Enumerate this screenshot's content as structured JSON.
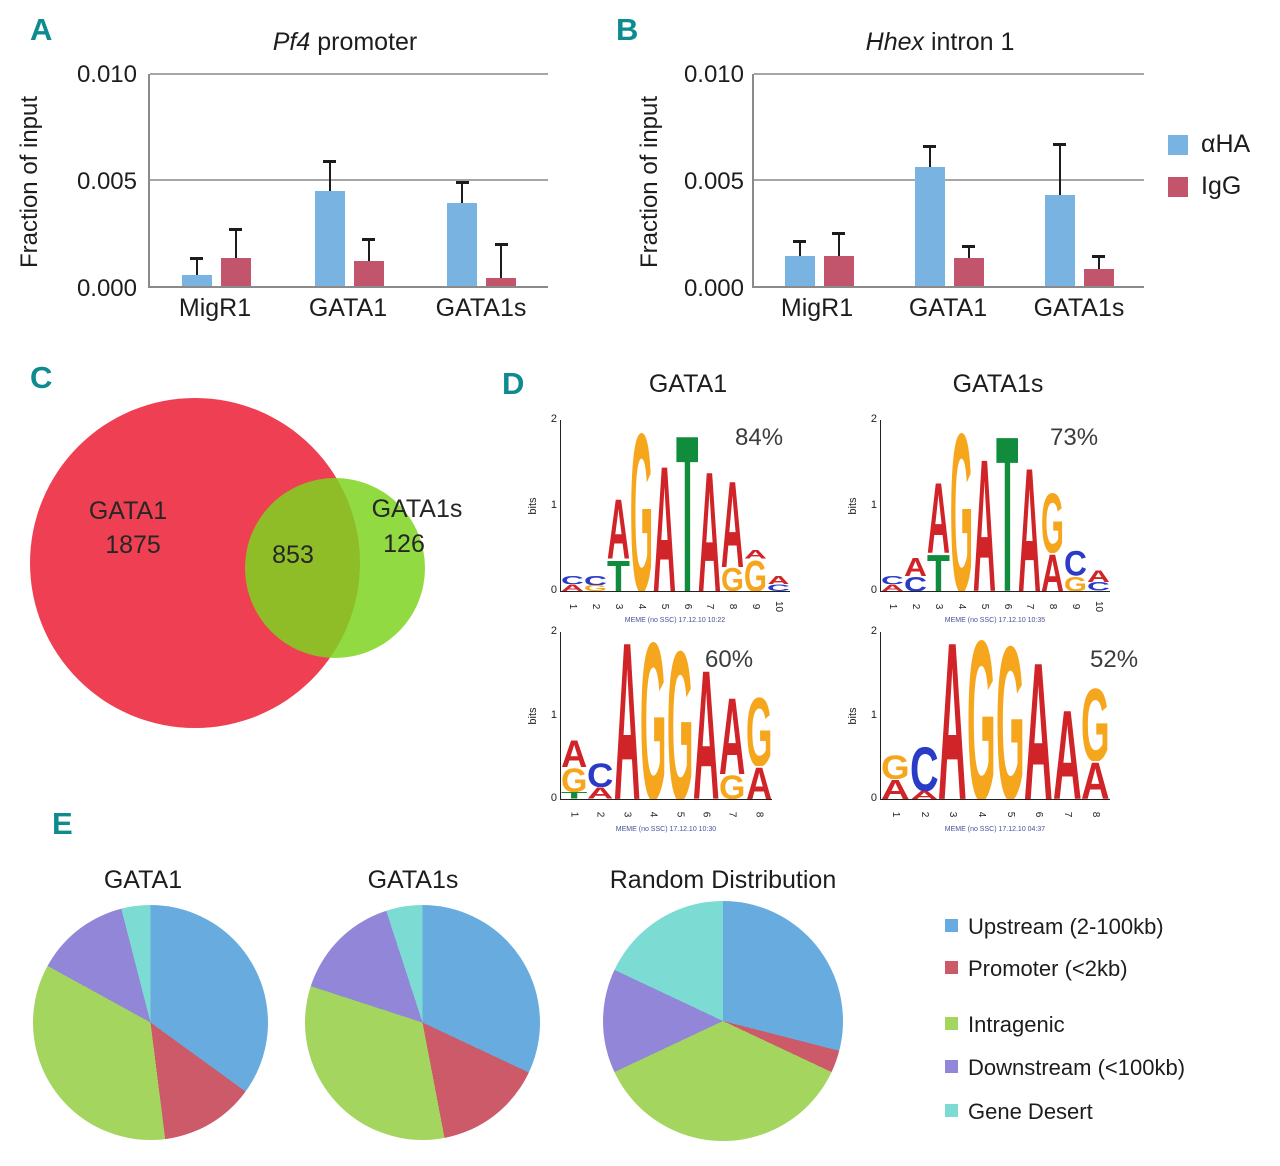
{
  "colors": {
    "panel_letter": "#0d8b90",
    "logo_A": "#d02428",
    "logo_C": "#2a3bc8",
    "logo_G": "#f5a61d",
    "logo_T": "#108c3c"
  },
  "chart_data": [
    {
      "type": "bar",
      "panel": "A",
      "title": "Pf4 promoter",
      "title_italic": "Pf4",
      "title_plain": " promoter",
      "ylabel": "Fraction of input",
      "ylim": [
        0,
        0.01
      ],
      "grid_values": [
        0.005,
        0.01
      ],
      "ytick_labels": [
        "0.010",
        "0.005",
        "0.000"
      ],
      "categories": [
        "MigR1",
        "GATA1",
        "GATA1s"
      ],
      "series": [
        {
          "name": "αHA",
          "color": "#79b3e2",
          "values": [
            0.0005,
            0.0045,
            0.0039
          ],
          "errors_top": [
            0.0013,
            0.0059,
            0.0049
          ]
        },
        {
          "name": "IgG",
          "color": "#c2556b",
          "values": [
            0.0013,
            0.0012,
            0.0004
          ],
          "errors_top": [
            0.0027,
            0.0022,
            0.002
          ]
        }
      ]
    },
    {
      "type": "bar",
      "panel": "B",
      "title": "Hhex intron 1",
      "title_italic": "Hhex",
      "title_plain": " intron 1",
      "ylabel": "Fraction of input",
      "ylim": [
        0,
        0.01
      ],
      "grid_values": [
        0.005,
        0.01
      ],
      "ytick_labels": [
        "0.010",
        "0.005",
        "0.000"
      ],
      "categories": [
        "MigR1",
        "GATA1",
        "GATA1s"
      ],
      "series": [
        {
          "name": "αHA",
          "color": "#79b3e2",
          "values": [
            0.0014,
            0.0056,
            0.0043
          ],
          "errors_top": [
            0.0021,
            0.0066,
            0.0067
          ]
        },
        {
          "name": "IgG",
          "color": "#c2556b",
          "values": [
            0.0014,
            0.0013,
            0.0008
          ],
          "errors_top": [
            0.0025,
            0.0019,
            0.0014
          ]
        }
      ]
    },
    {
      "type": "venn",
      "panel": "C",
      "left_label": "GATA1",
      "left_count": "1875",
      "overlap_count": "853",
      "right_label": "GATA1s",
      "right_count": "126",
      "left_color": "#ee4052",
      "right_color": "#7ed321"
    },
    {
      "type": "sequence_logo",
      "panel": "D",
      "column_titles": [
        "GATA1",
        "GATA1s"
      ],
      "ylabel": "bits",
      "ytick_labels": [
        "2",
        "1",
        "0"
      ],
      "logos": [
        {
          "column": "GATA1",
          "percent": "84%",
          "caption": "MEME (no SSC) 17.12.10 10:22",
          "positions": [
            [
              [
                "A",
                0.08
              ],
              [
                "C",
                0.1
              ]
            ],
            [
              [
                "G",
                0.07
              ],
              [
                "C",
                0.12
              ]
            ],
            [
              [
                "T",
                0.38
              ],
              [
                "A",
                0.72
              ]
            ],
            [
              [
                "G",
                1.92
              ]
            ],
            [
              [
                "A",
                1.52
              ]
            ],
            [
              [
                "T",
                1.9
              ]
            ],
            [
              [
                "A",
                1.45
              ]
            ],
            [
              [
                "G",
                0.28
              ],
              [
                "A",
                1.05
              ]
            ],
            [
              [
                "G",
                0.38
              ],
              [
                "A",
                0.1
              ]
            ],
            [
              [
                "C",
                0.08
              ],
              [
                "A",
                0.1
              ]
            ]
          ]
        },
        {
          "column": "GATA1s",
          "percent": "73%",
          "caption": "MEME (no SSC) 17.12.10 10:35",
          "positions": [
            [
              [
                "A",
                0.08
              ],
              [
                "C",
                0.1
              ]
            ],
            [
              [
                "C",
                0.18
              ],
              [
                "A",
                0.22
              ]
            ],
            [
              [
                "T",
                0.45
              ],
              [
                "A",
                0.85
              ]
            ],
            [
              [
                "G",
                1.92
              ]
            ],
            [
              [
                "A",
                1.6
              ]
            ],
            [
              [
                "T",
                1.88
              ]
            ],
            [
              [
                "A",
                1.5
              ]
            ],
            [
              [
                "A",
                0.45
              ],
              [
                "G",
                0.72
              ]
            ],
            [
              [
                "G",
                0.18
              ],
              [
                "C",
                0.3
              ]
            ],
            [
              [
                "C",
                0.1
              ],
              [
                "A",
                0.14
              ]
            ]
          ]
        },
        {
          "column": "GATA1",
          "percent": "60%",
          "caption": "MEME (no SSC) 17.12.10 10:30",
          "positions": [
            [
              [
                "T",
                0.08
              ],
              [
                "G",
                0.3
              ],
              [
                "A",
                0.34
              ]
            ],
            [
              [
                "A",
                0.14
              ],
              [
                "C",
                0.3
              ]
            ],
            [
              [
                "A",
                1.95
              ]
            ],
            [
              [
                "G",
                1.95
              ]
            ],
            [
              [
                "G",
                1.85
              ]
            ],
            [
              [
                "A",
                1.6
              ]
            ],
            [
              [
                "G",
                0.3
              ],
              [
                "A",
                0.95
              ]
            ],
            [
              [
                "A",
                0.4
              ],
              [
                "G",
                0.85
              ]
            ]
          ]
        },
        {
          "column": "GATA1s",
          "percent": "52%",
          "caption": "MEME (no SSC) 17.12.10 04:37",
          "positions": [
            [
              [
                "A",
                0.24
              ],
              [
                "G",
                0.3
              ]
            ],
            [
              [
                "A",
                0.1
              ],
              [
                "C",
                0.55
              ]
            ],
            [
              [
                "A",
                1.95
              ]
            ],
            [
              [
                "G",
                1.98
              ]
            ],
            [
              [
                "G",
                1.9
              ]
            ],
            [
              [
                "A",
                1.7
              ]
            ],
            [
              [
                "A",
                1.1
              ]
            ],
            [
              [
                "A",
                0.45
              ],
              [
                "G",
                0.9
              ]
            ]
          ]
        }
      ]
    },
    {
      "type": "pie",
      "panel": "E",
      "slice_colors": [
        "#68abdf",
        "#cc5a69",
        "#a4d55e",
        "#9186d8",
        "#7cdcd3"
      ],
      "pies": [
        {
          "title": "GATA1",
          "values": [
            35,
            13,
            35,
            13,
            4
          ]
        },
        {
          "title": "GATA1s",
          "values": [
            32,
            15,
            33,
            15,
            5
          ]
        },
        {
          "title": "Random Distribution",
          "values": [
            29,
            3,
            36,
            14,
            18
          ]
        }
      ],
      "legend": [
        "Upstream (2-100kb)",
        "Promoter (<2kb)",
        "Intragenic",
        "Downstream (<100kb)",
        "Gene Desert"
      ]
    }
  ]
}
